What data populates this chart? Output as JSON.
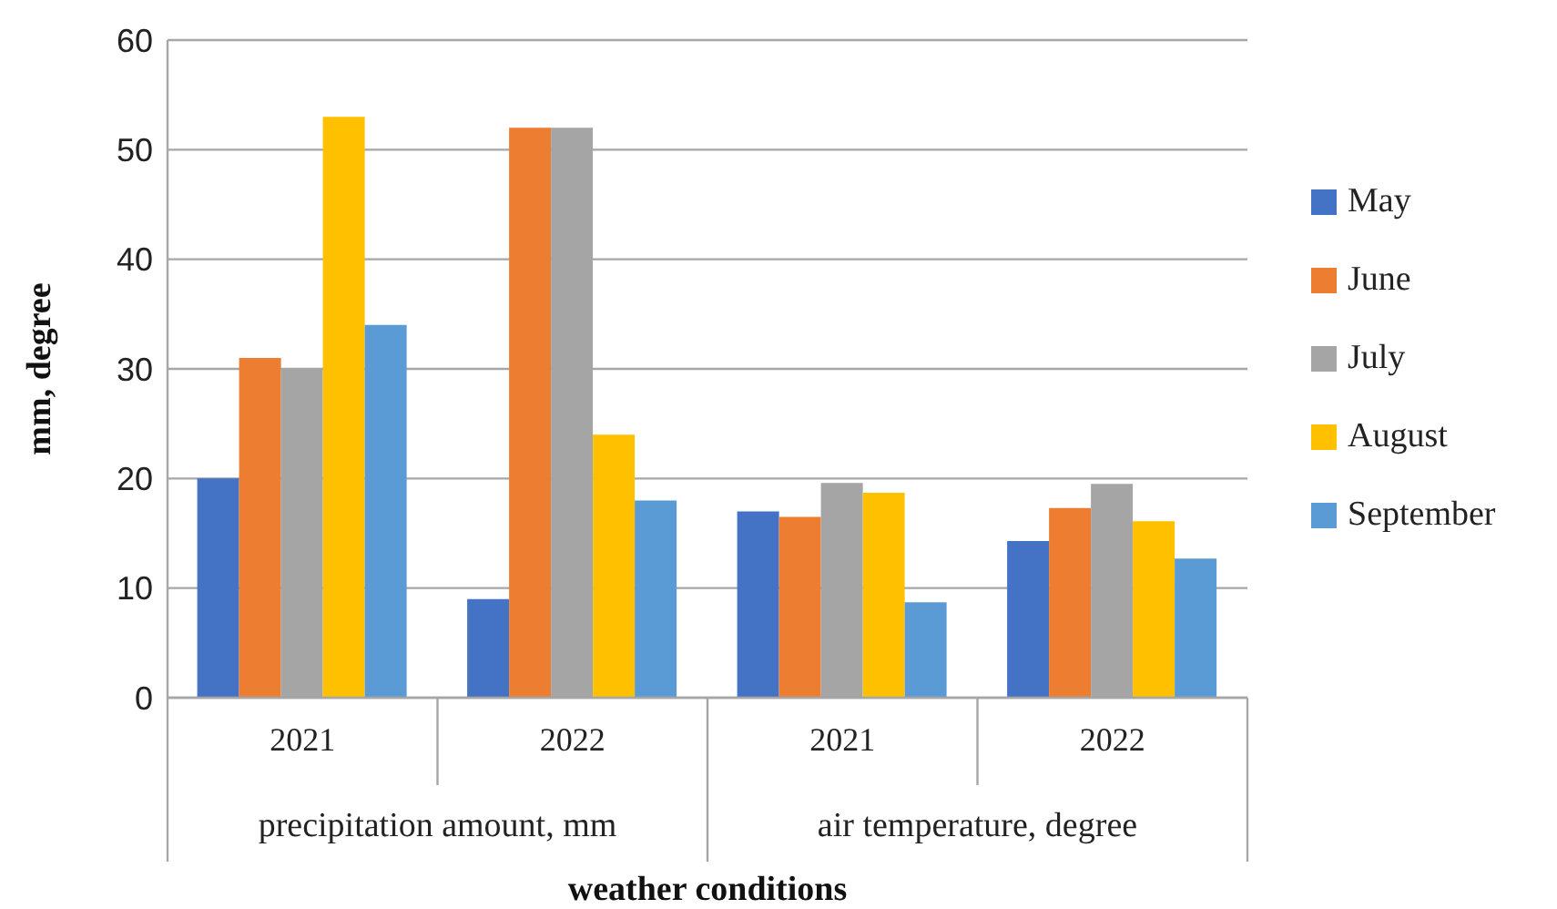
{
  "chart_data": {
    "type": "bar",
    "xlabel": "weather conditions",
    "ylabel": "mm, degree",
    "categories": [
      "2021",
      "2022",
      "2021",
      "2022"
    ],
    "annotations": [
      "precipitation amount, mm",
      "air temperature, degree"
    ],
    "series": [
      {
        "name": "May",
        "color": "#4472c4",
        "values": [
          20,
          9,
          17,
          14.3
        ]
      },
      {
        "name": "June",
        "color": "#ed7d31",
        "values": [
          31,
          52,
          16.5,
          17.3
        ]
      },
      {
        "name": "July",
        "color": "#a5a5a5",
        "values": [
          30,
          52,
          19.6,
          19.5
        ]
      },
      {
        "name": "August",
        "color": "#ffc000",
        "values": [
          53,
          24,
          18.7,
          16.1
        ]
      },
      {
        "name": "September",
        "color": "#5b9bd5",
        "values": [
          34,
          18,
          8.7,
          12.7
        ]
      }
    ],
    "ylim": [
      0,
      60
    ],
    "yticks": [
      0,
      10,
      20,
      30,
      40,
      50,
      60
    ],
    "grid": "y",
    "legend": "right"
  }
}
